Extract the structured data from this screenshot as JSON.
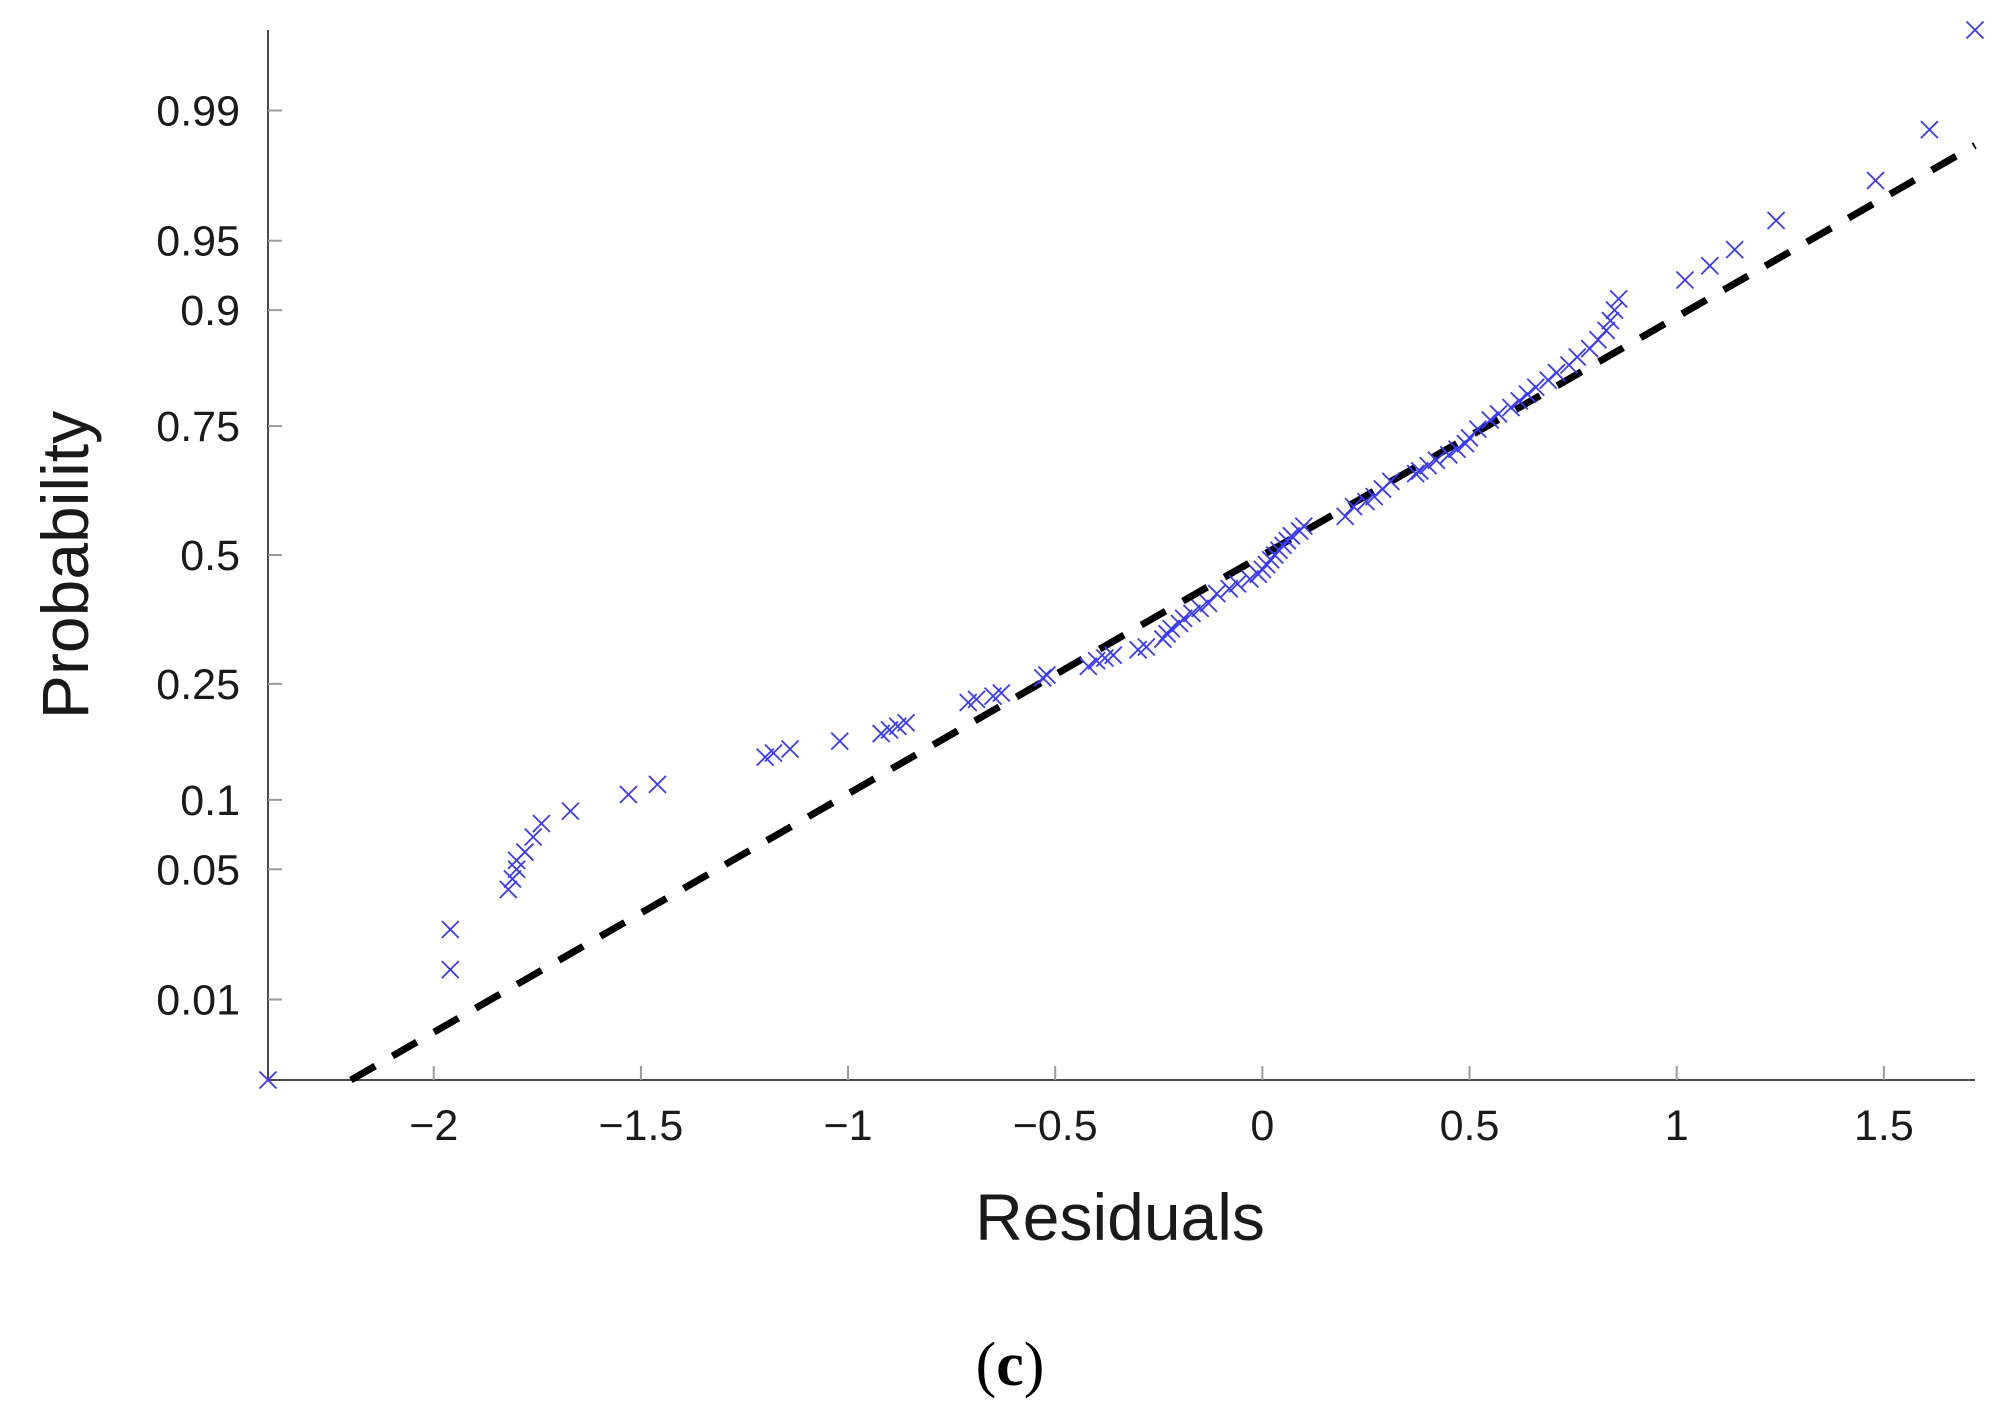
{
  "chart_data": {
    "type": "scatter",
    "plot": "normal probability plot",
    "xlabel": "Residuals",
    "ylabel": "Probability",
    "xlim": [
      -2.4,
      1.72
    ],
    "ylim": [
      0.003,
      0.997
    ],
    "yscale": "normal-probability",
    "x_ticks": [
      -2,
      -1.5,
      -1,
      -0.5,
      0,
      0.5,
      1,
      1.5
    ],
    "x_tick_labels": [
      "−2",
      "−1.5",
      "−1",
      "−0.5",
      "0",
      "0.5",
      "1",
      "1.5"
    ],
    "y_ticks": [
      0.01,
      0.05,
      0.1,
      0.25,
      0.5,
      0.75,
      0.9,
      0.95,
      0.99
    ],
    "y_tick_labels": [
      "0.01",
      "0.05",
      "0.1",
      "0.25",
      "0.5",
      "0.75",
      "0.9",
      "0.95",
      "0.99"
    ],
    "grid": false,
    "marker": "x",
    "colors": {
      "points": "#3a3aff",
      "fit_line": "#000000",
      "axes": "#4a4a4a"
    },
    "fit_line": {
      "style": "dashed",
      "x": [
        -2.2,
        1.72
      ],
      "y": [
        0.003,
        0.984
      ]
    },
    "series": [
      {
        "x": [
          -2.4,
          -1.96,
          -1.96,
          -1.82,
          -1.81,
          -1.8,
          -1.8,
          -1.78,
          -1.76,
          -1.74,
          -1.67,
          -1.53,
          -1.46,
          -1.2,
          -1.18,
          -1.14,
          -1.02,
          -0.92,
          -0.9,
          -0.88,
          -0.86,
          -0.71,
          -0.69,
          -0.65,
          -0.63,
          -0.53,
          -0.52,
          -0.42,
          -0.4,
          -0.38,
          -0.36,
          -0.3,
          -0.28,
          -0.24,
          -0.23,
          -0.22,
          -0.2,
          -0.19,
          -0.17,
          -0.15,
          -0.13,
          -0.11,
          -0.08,
          -0.06,
          -0.03,
          -0.01,
          0.0,
          0.01,
          0.02,
          0.03,
          0.04,
          0.05,
          0.06,
          0.07,
          0.09,
          0.1,
          0.2,
          0.22,
          0.25,
          0.27,
          0.29,
          0.31,
          0.37,
          0.38,
          0.4,
          0.42,
          0.45,
          0.47,
          0.49,
          0.5,
          0.52,
          0.55,
          0.57,
          0.6,
          0.62,
          0.64,
          0.66,
          0.69,
          0.71,
          0.74,
          0.76,
          0.79,
          0.81,
          0.83,
          0.84,
          0.85,
          0.86,
          1.02,
          1.08,
          1.14,
          1.24,
          1.48,
          1.61,
          1.72
        ],
        "y": [
          0.003,
          0.015,
          0.025,
          0.04,
          0.045,
          0.05,
          0.055,
          0.06,
          0.07,
          0.08,
          0.09,
          0.105,
          0.115,
          0.145,
          0.15,
          0.155,
          0.165,
          0.175,
          0.18,
          0.185,
          0.19,
          0.22,
          0.225,
          0.23,
          0.235,
          0.26,
          0.265,
          0.28,
          0.29,
          0.295,
          0.3,
          0.31,
          0.315,
          0.33,
          0.34,
          0.35,
          0.36,
          0.37,
          0.38,
          0.39,
          0.4,
          0.42,
          0.43,
          0.44,
          0.45,
          0.46,
          0.47,
          0.48,
          0.49,
          0.5,
          0.51,
          0.52,
          0.53,
          0.54,
          0.55,
          0.56,
          0.58,
          0.6,
          0.61,
          0.62,
          0.635,
          0.65,
          0.665,
          0.67,
          0.68,
          0.69,
          0.7,
          0.71,
          0.72,
          0.73,
          0.745,
          0.76,
          0.77,
          0.78,
          0.79,
          0.8,
          0.81,
          0.82,
          0.83,
          0.84,
          0.85,
          0.86,
          0.87,
          0.88,
          0.89,
          0.9,
          0.91,
          0.925,
          0.935,
          0.945,
          0.96,
          0.975,
          0.987,
          0.997
        ]
      }
    ]
  },
  "caption": {
    "open": "(",
    "letter": "c",
    "close": ")"
  }
}
